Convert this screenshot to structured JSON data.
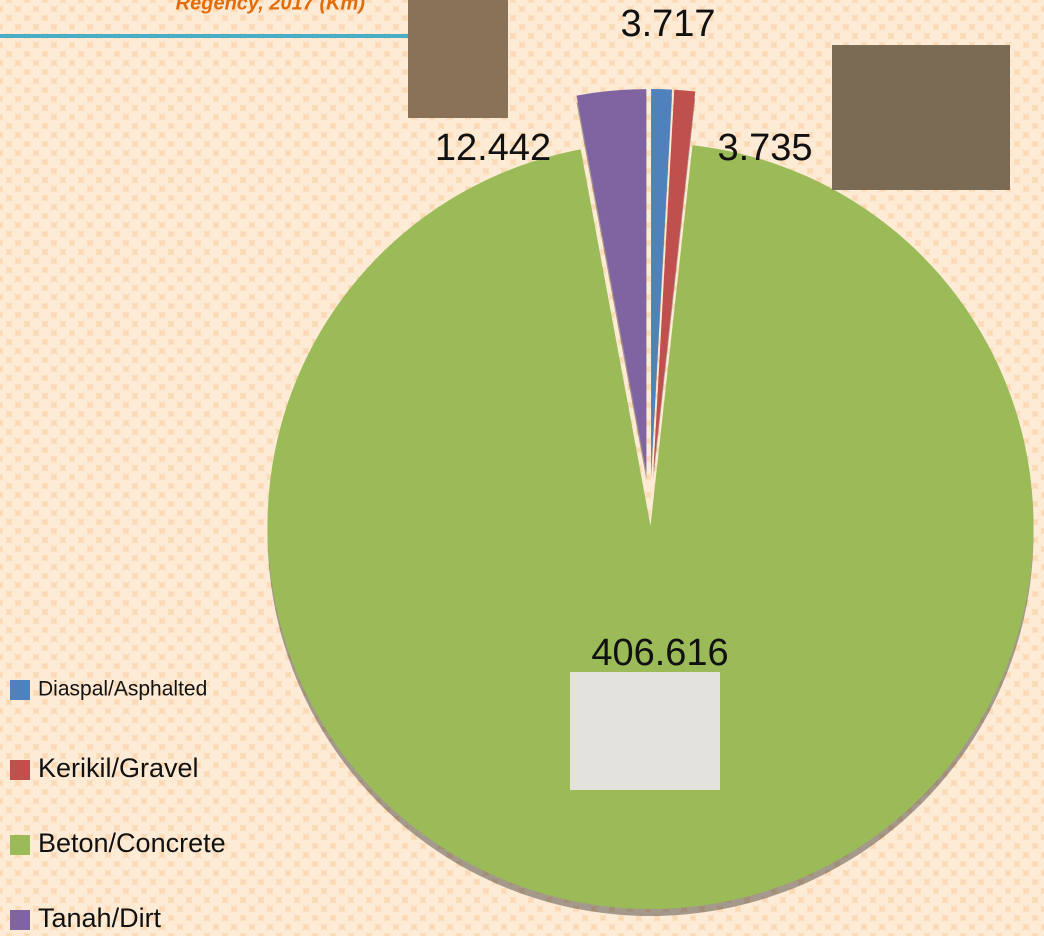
{
  "chart_data": {
    "type": "pie",
    "title": "Regency, 2017 (Km)",
    "categories": [
      "Diaspal/Asphalted",
      "Kerikil/Gravel",
      "Beton/Concrete",
      "Tanah/Dirt"
    ],
    "values": [
      3.717,
      3.735,
      406.616,
      12.442
    ],
    "colors": [
      "#4f81bd",
      "#c0504d",
      "#9bbb59",
      "#8064a2"
    ],
    "legend": "left"
  }
}
